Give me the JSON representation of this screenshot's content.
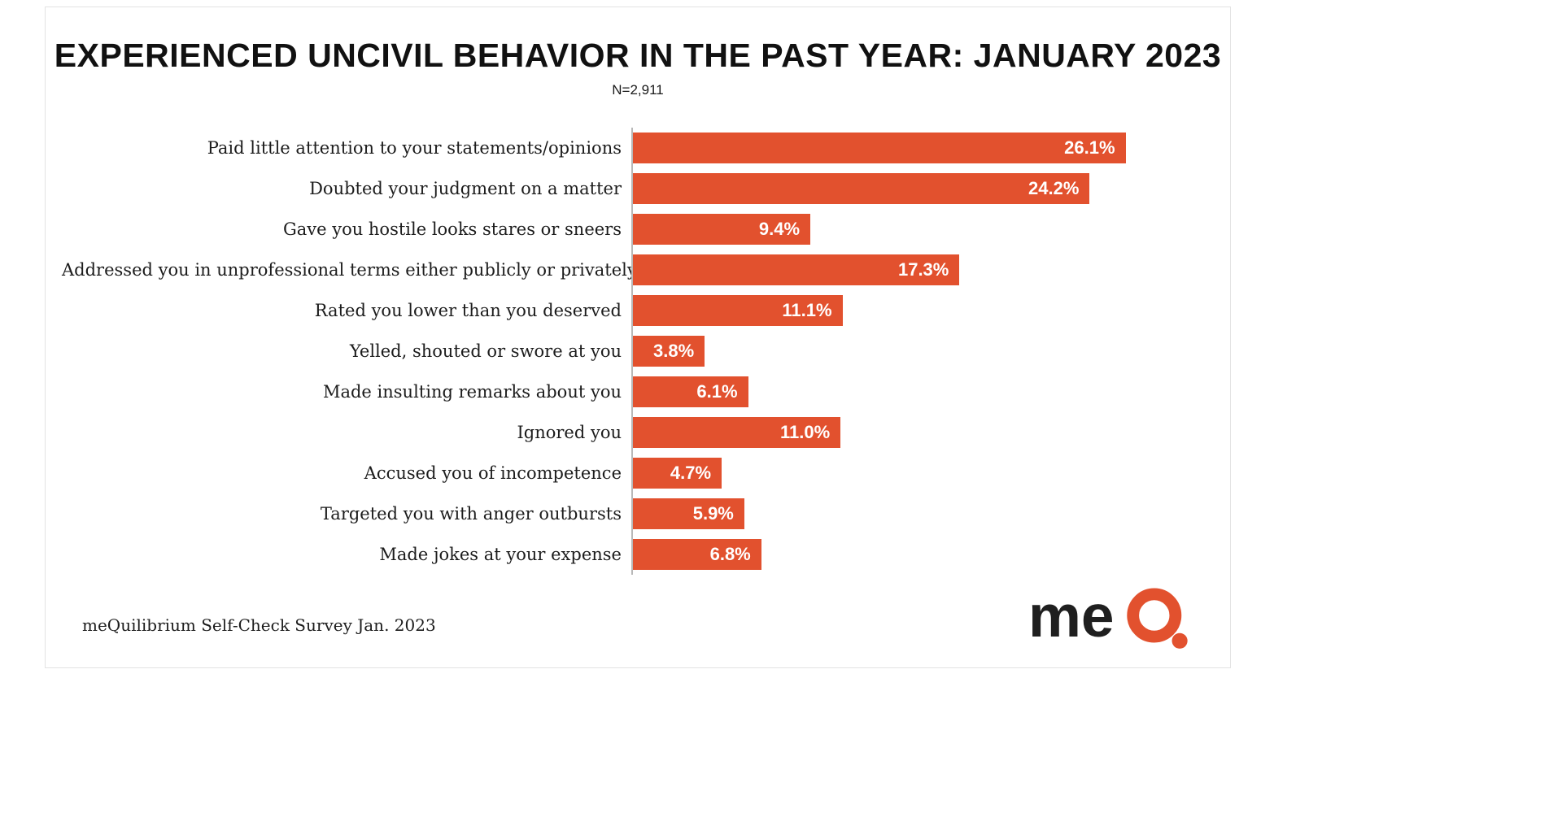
{
  "page": {
    "title": "EXPERIENCED UNCIVIL BEHAVIOR IN THE PAST YEAR: JANUARY 2023",
    "subtitle": "N=2,911",
    "footer": "meQuilibrium Self-Check Survey Jan. 2023",
    "logo": {
      "text_me": "me",
      "accent_color": "#E2512E",
      "text_color": "#1f1f1f"
    }
  },
  "chart_data": {
    "type": "bar",
    "orientation": "horizontal",
    "title": "EXPERIENCED UNCIVIL BEHAVIOR IN THE PAST YEAR: JANUARY 2023",
    "subtitle": "N=2,911",
    "categories": [
      "Paid little attention to your statements/opinions",
      "Doubted your judgment on a matter",
      "Gave you hostile looks stares or sneers",
      "Addressed you in unprofessional terms either publicly or privately",
      "Rated you lower than you deserved",
      "Yelled, shouted or swore at you",
      "Made insulting remarks about you",
      "Ignored you",
      "Accused you of incompetence",
      "Targeted you with anger outbursts",
      "Made jokes at your expense"
    ],
    "values": [
      26.1,
      24.2,
      9.4,
      17.3,
      11.1,
      3.8,
      6.1,
      11.0,
      4.7,
      5.9,
      6.8
    ],
    "value_labels": [
      "26.1%",
      "24.2%",
      "9.4%",
      "17.3%",
      "11.1%",
      "3.8%",
      "6.1%",
      "11.0%",
      "4.7%",
      "5.9%",
      "6.8%"
    ],
    "bar_color": "#E2512E",
    "value_label_color": "#ffffff",
    "xlabel": "",
    "ylabel": "",
    "xlim": [
      0,
      28
    ],
    "grid": false,
    "legend": false,
    "source_note": "meQuilibrium Self-Check Survey Jan. 2023"
  }
}
